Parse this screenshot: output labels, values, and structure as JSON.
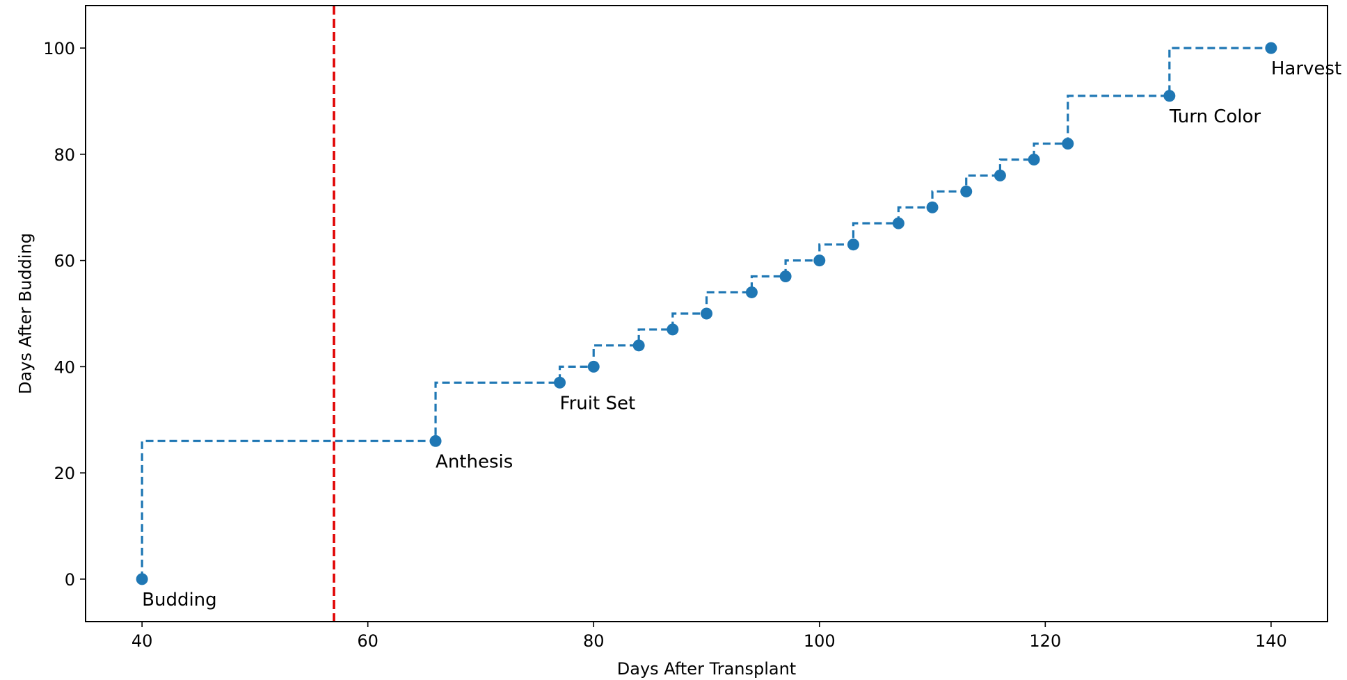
{
  "chart_data": {
    "type": "line",
    "title": "",
    "xlabel": "Days After Transplant",
    "ylabel": "Days After Budding",
    "xlim": [
      35,
      145
    ],
    "ylim": [
      -8,
      108
    ],
    "xticks": [
      40,
      60,
      80,
      100,
      120,
      140
    ],
    "yticks": [
      0,
      20,
      40,
      60,
      80,
      100
    ],
    "grid": false,
    "legend": "none",
    "step": "post",
    "line_style": "dashed",
    "colors": {
      "series": "#1f77b4",
      "vline": "#e00000"
    },
    "series": [
      {
        "x": [
          40,
          66,
          77,
          80,
          84,
          87,
          90,
          94,
          97,
          100,
          103,
          107,
          110,
          113,
          116,
          119,
          122,
          131,
          140
        ],
        "y": [
          0,
          26,
          37,
          40,
          44,
          47,
          50,
          54,
          57,
          60,
          63,
          67,
          70,
          73,
          76,
          79,
          82,
          91,
          100
        ]
      }
    ],
    "vline": {
      "x": 57,
      "style": "dashed"
    },
    "annotations": [
      {
        "text": "Budding",
        "x": 40,
        "y": 0
      },
      {
        "text": "Anthesis",
        "x": 66,
        "y": 26
      },
      {
        "text": "Fruit Set",
        "x": 77,
        "y": 37
      },
      {
        "text": "Turn Color",
        "x": 131,
        "y": 91
      },
      {
        "text": "Harvest",
        "x": 140,
        "y": 100
      }
    ]
  }
}
